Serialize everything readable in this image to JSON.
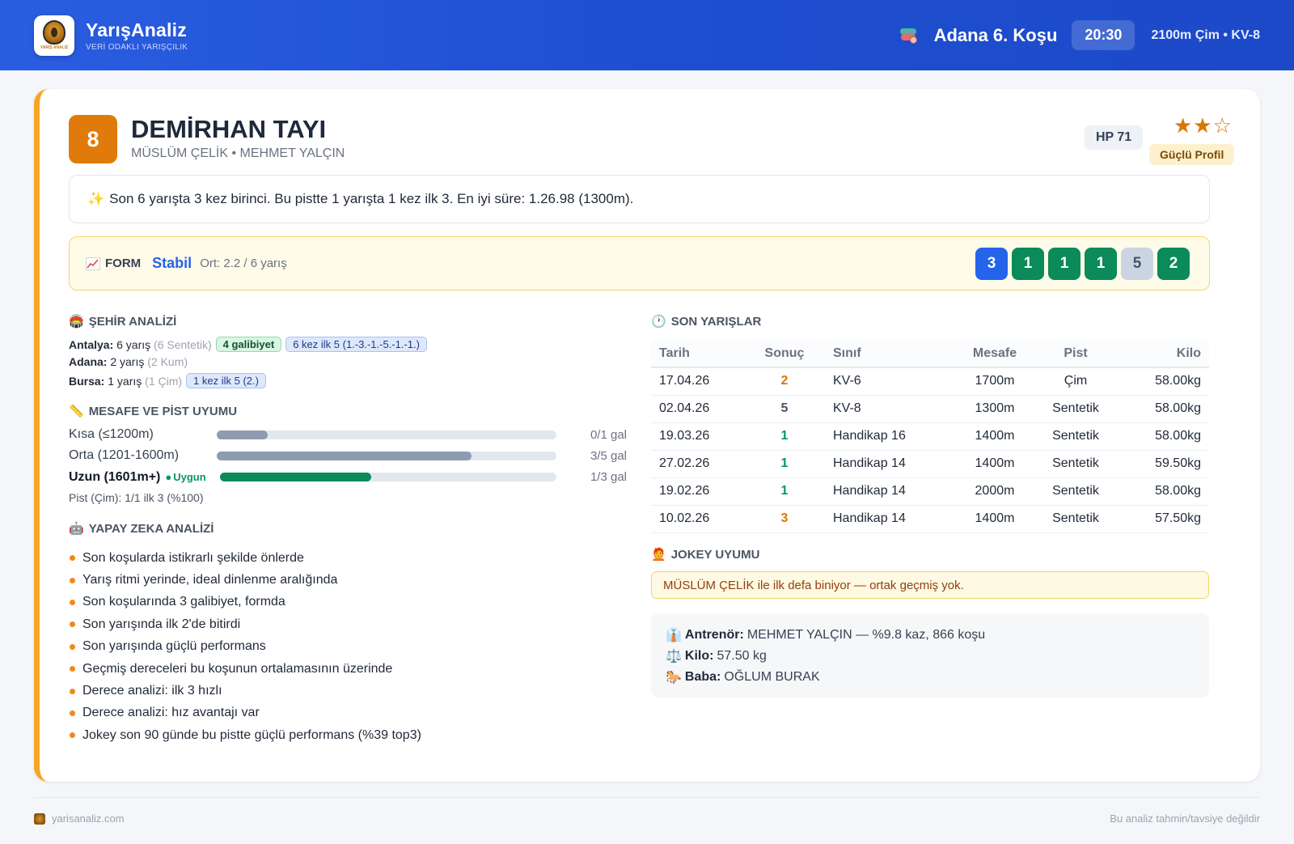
{
  "header": {
    "brand_name": "YarışAnaliz",
    "brand_tagline": "VERİ ODAKLI YARIŞÇILIK",
    "logo_mini": "YARIŞ ANALİZ",
    "race_title": "Adana 6. Koşu",
    "race_time": "20:30",
    "race_meta": "2100m Çim • KV-8"
  },
  "horse": {
    "number": "8",
    "name": "DEMİRHAN TAYI",
    "sub": "MÜSLÜM ÇELİK • MEHMET YALÇIN",
    "hp": "HP 71",
    "stars": "★★☆",
    "rating_stars": 2,
    "rating_max": 3,
    "profile": "Güçlü Profil"
  },
  "summary": {
    "icon": "sparkle-icon",
    "text": "Son 6 yarışta 3 kez birinci. Bu pistte 1 yarışta 1 kez ilk 3. En iyi süre: 1.26.98 (1300m)."
  },
  "form": {
    "label": "FORM",
    "status": "Stabil",
    "average": "Ort: 2.2 / 6 yarış",
    "chips": [
      {
        "value": "3",
        "color": "#2563eb"
      },
      {
        "value": "1",
        "color": "#0b8a5a"
      },
      {
        "value": "1",
        "color": "#0b8a5a"
      },
      {
        "value": "1",
        "color": "#0b8a5a"
      },
      {
        "value": "5",
        "color": "#cbd5e1"
      },
      {
        "value": "2",
        "color": "#0b8a5a"
      }
    ]
  },
  "city": {
    "title": "ŞEHİR ANALİZİ",
    "rows": [
      {
        "city": "Antalya:",
        "races": "6 yarış",
        "surface": "(6 Sentetik)",
        "win_tag": "4 galibiyet",
        "top_tag": "6 kez ilk 5 (1.-3.-1.-5.-1.-1.)"
      },
      {
        "city": "Adana:",
        "races": "2 yarış",
        "surface": "(2 Kum)"
      },
      {
        "city": "Bursa:",
        "races": "1 yarış",
        "surface": "(1 Çim)",
        "top_tag": "1 kez ilk 5 (2.)"
      }
    ]
  },
  "distance": {
    "title": "MESAFE VE PİST UYUMU",
    "rows": [
      {
        "label": "Kısa (≤1200m)",
        "value": "0/1 gal",
        "fill": 0.15,
        "color": "#8e9bb0"
      },
      {
        "label": "Orta (1201-1600m)",
        "value": "3/5 gal",
        "fill": 0.75,
        "color": "#8e9bb0"
      },
      {
        "label": "Uzun (1601m+)",
        "value": "1/3 gal",
        "fill": 0.45,
        "color": "#0b8a5a",
        "badge": "Uygun"
      }
    ],
    "pist_note": "Pist (Çim): 1/1 ilk 3 (%100)"
  },
  "ai": {
    "title": "YAPAY ZEKA ANALİZİ",
    "items": [
      "Son koşularda istikrarlı şekilde önlerde",
      "Yarış ritmi yerinde, ideal dinlenme aralığında",
      "Son koşularında 3 galibiyet, formda",
      "Son yarışında ilk 2'de bitirdi",
      "Son yarışında güçlü performans",
      "Geçmiş dereceleri bu koşunun ortalamasının üzerinde",
      "Derece analizi: ilk 3 hızlı",
      "Derece analizi: hız avantajı var",
      "Jokey son 90 günde bu pistte güçlü performans (%39 top3)"
    ]
  },
  "races": {
    "title": "SON YARIŞLAR",
    "columns": [
      "Tarih",
      "Sonuç",
      "Sınıf",
      "Mesafe",
      "Pist",
      "Kilo"
    ],
    "rows": [
      {
        "date": "17.04.26",
        "result": "2",
        "result_color": "#d97706",
        "class": "KV-6",
        "distance": "1700m",
        "track": "Çim",
        "weight": "58.00kg"
      },
      {
        "date": "02.04.26",
        "result": "5",
        "result_color": "#475569",
        "class": "KV-8",
        "distance": "1300m",
        "track": "Sentetik",
        "weight": "58.00kg"
      },
      {
        "date": "19.03.26",
        "result": "1",
        "result_color": "#059669",
        "class": "Handikap 16",
        "distance": "1400m",
        "track": "Sentetik",
        "weight": "58.00kg"
      },
      {
        "date": "27.02.26",
        "result": "1",
        "result_color": "#059669",
        "class": "Handikap 14",
        "distance": "1400m",
        "track": "Sentetik",
        "weight": "59.50kg"
      },
      {
        "date": "19.02.26",
        "result": "1",
        "result_color": "#059669",
        "class": "Handikap 14",
        "distance": "2000m",
        "track": "Sentetik",
        "weight": "58.00kg"
      },
      {
        "date": "10.02.26",
        "result": "3",
        "result_color": "#d97706",
        "class": "Handikap 14",
        "distance": "1400m",
        "track": "Sentetik",
        "weight": "57.50kg"
      }
    ]
  },
  "jockey": {
    "title": "JOKEY UYUMU",
    "note": "MÜSLÜM ÇELİK ile ilk defa biniyor — ortak geçmiş yok."
  },
  "details": {
    "trainer_label": "Antrenör:",
    "trainer_value": "MEHMET YALÇIN — %9.8 kaz, 866 koşu",
    "weight_label": "Kilo:",
    "weight_value": "57.50 kg",
    "sire_label": "Baba:",
    "sire_value": "OĞLUM BURAK"
  },
  "footer": {
    "site": "yarisanaliz.com",
    "disclaimer": "Bu analiz tahmin/tavsiye değildir"
  }
}
